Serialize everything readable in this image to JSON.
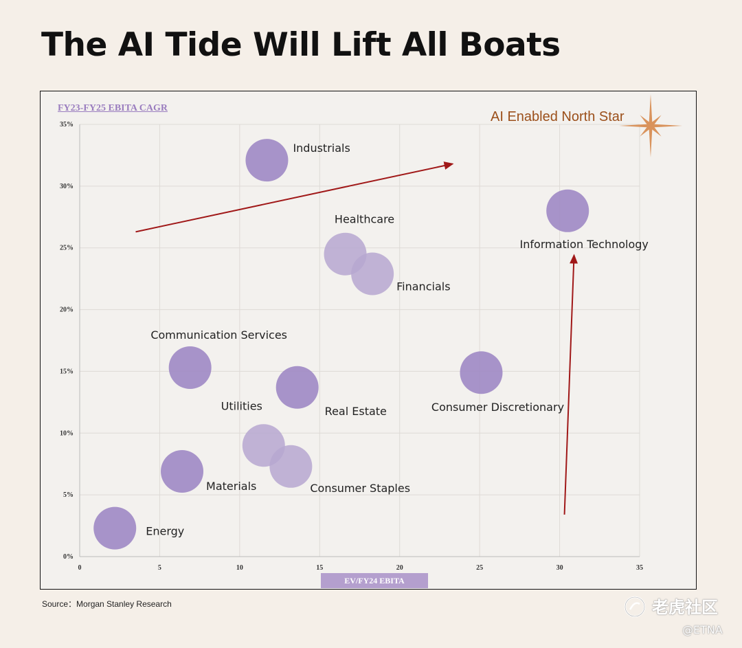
{
  "header": {
    "title": "The AI Tide Will Lift All Boats"
  },
  "annotation": {
    "north_star": "AI Enabled North Star"
  },
  "footer": {
    "source": "Source：Morgan Stanley Research"
  },
  "watermark": {
    "brand": "老虎社区",
    "handle": "@ETNA"
  },
  "colors": {
    "bubble": "#9f88c4",
    "bubble_light": "#b6a7d0",
    "arrow": "#a01818",
    "star": "#d9935c"
  },
  "chart_data": {
    "type": "scatter",
    "title": "The AI Tide Will Lift All Boats",
    "xlabel": "EV/FY24 EBITA",
    "ylabel": "FY23-FY25 EBITA CAGR",
    "xlim": [
      0,
      35
    ],
    "ylim": [
      0,
      35
    ],
    "x_ticks": [
      "0",
      "5",
      "10",
      "15",
      "20",
      "25",
      "30",
      "35"
    ],
    "y_ticks": [
      "0%",
      "5%",
      "10%",
      "15%",
      "20%",
      "25%",
      "30%",
      "35%"
    ],
    "grid": true,
    "points": [
      {
        "label": "Industrials",
        "x": 11.7,
        "y": 32.1
      },
      {
        "label": "Information Technology",
        "x": 30.5,
        "y": 28.0
      },
      {
        "label": "Healthcare",
        "x": 16.6,
        "y": 24.5
      },
      {
        "label": "Financials",
        "x": 18.3,
        "y": 22.9
      },
      {
        "label": "Communication Services",
        "x": 6.9,
        "y": 15.3
      },
      {
        "label": "Real Estate",
        "x": 13.6,
        "y": 13.7
      },
      {
        "label": "Consumer Discretionary",
        "x": 25.1,
        "y": 14.9
      },
      {
        "label": "Utilities",
        "x": 11.5,
        "y": 9.0
      },
      {
        "label": "Consumer Staples",
        "x": 13.2,
        "y": 7.3
      },
      {
        "label": "Materials",
        "x": 6.4,
        "y": 6.9
      },
      {
        "label": "Energy",
        "x": 2.2,
        "y": 2.3
      }
    ],
    "arrows": [
      {
        "from": [
          3.5,
          26.3
        ],
        "to": [
          23.3,
          31.8
        ]
      },
      {
        "from": [
          30.3,
          3.4
        ],
        "to": [
          30.9,
          24.4
        ]
      }
    ]
  }
}
